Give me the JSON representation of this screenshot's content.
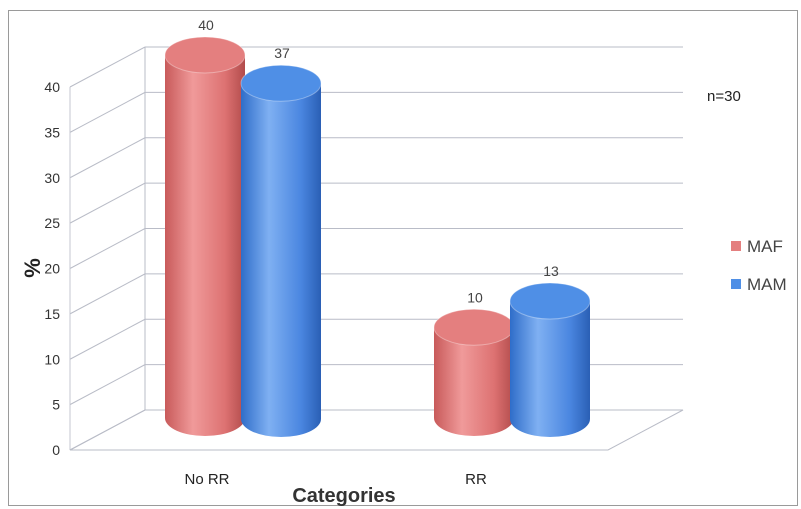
{
  "chart_data": {
    "type": "bar",
    "categories": [
      "No RR",
      "RR"
    ],
    "series": [
      {
        "name": "MAF",
        "values": [
          40,
          10
        ],
        "color": "#e47f7f"
      },
      {
        "name": "MAM",
        "values": [
          37,
          13
        ],
        "color": "#4f8fe6"
      }
    ],
    "xlabel": "Categories",
    "ylabel": "%",
    "ylim": [
      0,
      40
    ],
    "yticks": [
      "0",
      "5",
      "10",
      "15",
      "20",
      "25",
      "30",
      "35",
      "40"
    ],
    "data_labels": [
      [
        "40",
        "10"
      ],
      [
        "37",
        "13"
      ]
    ],
    "annotation": "n=30",
    "grid": true,
    "legend_position": "right",
    "style": "3d-cylinder"
  }
}
